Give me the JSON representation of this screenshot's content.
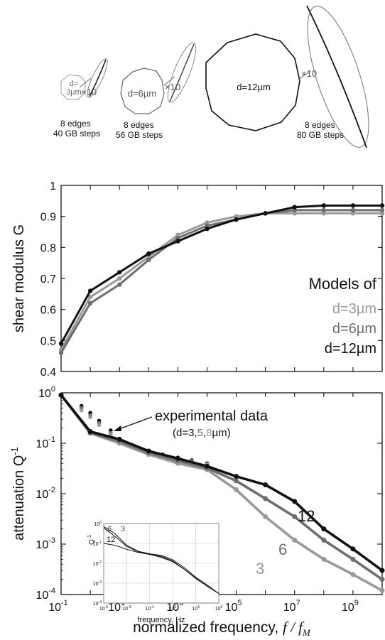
{
  "top_panel": {
    "grains": [
      {
        "label": "d=\n3µm",
        "magnification": "×10",
        "caption_line1": "8 edges",
        "caption_line2": "40 GB steps"
      },
      {
        "label": "d=6µm",
        "magnification": "×10",
        "caption_line1": "8 edges",
        "caption_line2": "56 GB steps"
      },
      {
        "label": "d=12µm",
        "magnification": "×10",
        "caption_line1": "8 edges",
        "caption_line2": "80 GB steps"
      }
    ]
  },
  "colors": {
    "d3": "#9a9a9a",
    "d6": "#6e6e6e",
    "d12": "#111111",
    "axis": "#000000",
    "grid": "#c8c8c8"
  },
  "chart_data": [
    {
      "type": "line",
      "ylabel": "shear modulus  G",
      "xscale": "log",
      "xlim": [
        0.1,
        10000000000
      ],
      "ylim": [
        0.4,
        1.0
      ],
      "yticks": [
        "0.4",
        "0.5",
        "0.6",
        "0.7",
        "0.8",
        "0.9",
        "1"
      ],
      "grid": false,
      "legend": {
        "title": "Models of",
        "entries": [
          "d=3µm",
          "d=6µm",
          "d=12µm"
        ],
        "placement": "right"
      },
      "series": [
        {
          "name": "d=3µm",
          "color_key": "d3",
          "x": [
            0.1,
            1,
            10,
            100,
            1000,
            10000,
            100000,
            1000000,
            10000000,
            100000000,
            1000000000,
            10000000000
          ],
          "y": [
            0.47,
            0.64,
            0.7,
            0.77,
            0.84,
            0.88,
            0.9,
            0.91,
            0.91,
            0.91,
            0.91,
            0.91
          ]
        },
        {
          "name": "d=6µm",
          "color_key": "d6",
          "x": [
            0.1,
            1,
            10,
            100,
            1000,
            10000,
            100000,
            1000000,
            10000000,
            100000000,
            1000000000,
            10000000000
          ],
          "y": [
            0.46,
            0.62,
            0.68,
            0.76,
            0.83,
            0.87,
            0.89,
            0.91,
            0.92,
            0.92,
            0.92,
            0.92
          ]
        },
        {
          "name": "d=12µm",
          "color_key": "d12",
          "x": [
            0.1,
            1,
            10,
            100,
            1000,
            10000,
            100000,
            1000000,
            10000000,
            100000000,
            1000000000,
            10000000000
          ],
          "y": [
            0.49,
            0.66,
            0.72,
            0.78,
            0.82,
            0.86,
            0.89,
            0.91,
            0.93,
            0.935,
            0.935,
            0.935
          ]
        }
      ]
    },
    {
      "type": "line",
      "ylabel": "attenuation  Q",
      "ylabel_sup": "-1",
      "xlabel": "normalized frequency, ",
      "xlabel_var": "f / f",
      "xlabel_sub": "M",
      "xscale": "log",
      "yscale": "log",
      "xlim": [
        0.1,
        10000000000
      ],
      "ylim": [
        0.0001,
        1
      ],
      "xticks": [
        {
          "b": "10",
          "e": "-1"
        },
        {
          "b": "10",
          "e": "1"
        },
        {
          "b": "10",
          "e": "3"
        },
        {
          "b": "10",
          "e": "5"
        },
        {
          "b": "10",
          "e": "7"
        },
        {
          "b": "10",
          "e": "9"
        }
      ],
      "yticks": [
        {
          "b": "10",
          "e": "0"
        },
        {
          "b": "10",
          "e": "-1"
        },
        {
          "b": "10",
          "e": "-2"
        },
        {
          "b": "10",
          "e": "-3"
        },
        {
          "b": "10",
          "e": "-4"
        }
      ],
      "annotation": {
        "text": "experimental data",
        "subtext_parts": [
          "(d=3,",
          "5",
          ",",
          "8",
          "µm)"
        ]
      },
      "curve_labels": [
        "12",
        "6",
        "3"
      ],
      "series": [
        {
          "name": "3",
          "color_key": "d3",
          "x": [
            0.1,
            1,
            10,
            100,
            1000,
            10000,
            100000,
            1000000,
            10000000,
            100000000,
            1000000000,
            10000000000
          ],
          "y": [
            0.9,
            0.16,
            0.1,
            0.06,
            0.04,
            0.03,
            0.012,
            0.0035,
            0.0012,
            0.0005,
            0.00025,
            0.00012
          ]
        },
        {
          "name": "6",
          "color_key": "d6",
          "x": [
            0.1,
            1,
            10,
            100,
            1000,
            10000,
            100000,
            1000000,
            10000000,
            100000000,
            1000000000,
            10000000000
          ],
          "y": [
            0.9,
            0.16,
            0.11,
            0.065,
            0.045,
            0.032,
            0.018,
            0.008,
            0.0035,
            0.0012,
            0.0005,
            0.0002
          ]
        },
        {
          "name": "12",
          "color_key": "d12",
          "x": [
            0.1,
            1,
            10,
            100,
            1000,
            10000,
            100000,
            1000000,
            10000000,
            100000000,
            1000000000,
            10000000000
          ],
          "y": [
            0.9,
            0.17,
            0.12,
            0.07,
            0.05,
            0.035,
            0.022,
            0.015,
            0.007,
            0.002,
            0.0008,
            0.0003
          ]
        }
      ],
      "experimental": [
        {
          "name": "d=3µm",
          "color_key": "d12",
          "x": [
            0.5,
            1,
            2,
            5,
            10,
            30,
            100,
            300,
            1000,
            3000,
            10000
          ],
          "y": [
            0.55,
            0.4,
            0.28,
            0.18,
            0.12,
            0.09,
            0.07,
            0.06,
            0.052,
            0.046,
            0.04
          ]
        },
        {
          "name": "d=5µm",
          "color_key": "d6",
          "x": [
            0.5,
            1,
            2,
            5,
            10,
            30,
            100,
            300,
            1000,
            3000,
            10000
          ],
          "y": [
            0.5,
            0.36,
            0.25,
            0.16,
            0.115,
            0.085,
            0.068,
            0.058,
            0.05,
            0.044,
            0.039
          ]
        },
        {
          "name": "d=8µm",
          "color_key": "d3",
          "x": [
            0.5,
            1,
            2,
            5,
            10,
            30,
            100,
            300,
            1000,
            3000,
            10000
          ],
          "y": [
            0.45,
            0.33,
            0.23,
            0.15,
            0.11,
            0.08,
            0.065,
            0.056,
            0.048,
            0.043,
            0.038
          ]
        }
      ]
    },
    {
      "type": "line",
      "ylabel": "Q",
      "ylabel_sup": "-1",
      "xlabel": "frequency, Hz",
      "xscale": "log",
      "yscale": "log",
      "xlim": [
        1e-05,
        100000
      ],
      "ylim": [
        0.0001,
        1
      ],
      "xticks": [
        {
          "b": "10",
          "e": "-5"
        },
        {
          "b": "10",
          "e": "-3"
        },
        {
          "b": "10",
          "e": "-1"
        },
        {
          "b": "10",
          "e": "1"
        },
        {
          "b": "10",
          "e": "3"
        },
        {
          "b": "10",
          "e": "5"
        }
      ],
      "yticks": [
        {
          "b": "10",
          "e": "0"
        },
        {
          "b": "10",
          "e": "-1"
        },
        {
          "b": "10",
          "e": "-2"
        },
        {
          "b": "10",
          "e": "-3"
        },
        {
          "b": "10",
          "e": "-4"
        }
      ],
      "curve_labels": [
        "6",
        "3",
        "12"
      ],
      "series": [
        {
          "name": "3",
          "color_key": "d12",
          "x": [
            1e-05,
            0.0001,
            0.001,
            0.01,
            0.1,
            1,
            10,
            100,
            1000,
            10000,
            100000
          ],
          "y": [
            0.7,
            0.3,
            0.08,
            0.04,
            0.03,
            0.025,
            0.015,
            0.006,
            0.002,
            0.0008,
            0.0003
          ]
        },
        {
          "name": "6",
          "color_key": "d12",
          "x": [
            1e-05,
            0.0001,
            0.001,
            0.01,
            0.1,
            1,
            10,
            100,
            1000,
            10000,
            100000
          ],
          "y": [
            0.6,
            0.22,
            0.07,
            0.038,
            0.028,
            0.022,
            0.013,
            0.005,
            0.0018,
            0.0007,
            0.0003
          ]
        },
        {
          "name": "12",
          "color_key": "d12",
          "x": [
            1e-05,
            0.0001,
            0.001,
            0.01,
            0.1,
            1,
            10,
            100,
            1000,
            10000,
            100000
          ],
          "y": [
            0.1,
            0.08,
            0.05,
            0.035,
            0.028,
            0.02,
            0.012,
            0.005,
            0.0017,
            0.0007,
            0.0003
          ]
        }
      ]
    }
  ]
}
